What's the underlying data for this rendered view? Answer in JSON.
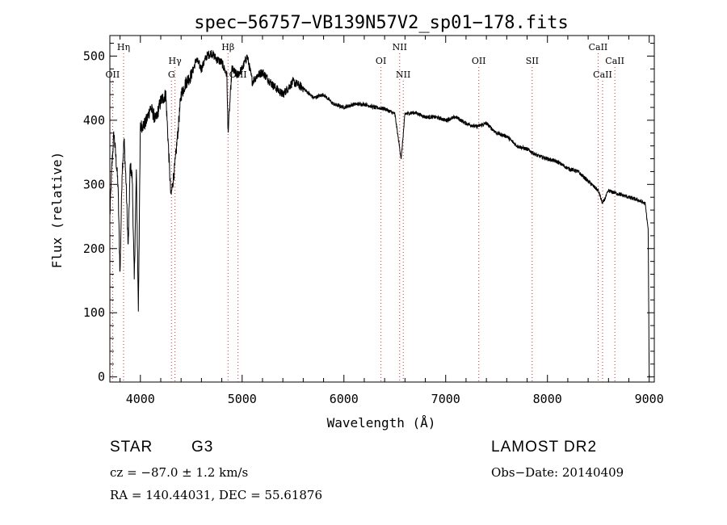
{
  "chart_data": {
    "type": "line",
    "title": "spec−56757−VB139N57V2_sp01−178.fits",
    "xlabel": "Wavelength (Å)",
    "ylabel": "Flux (relative)",
    "xlim": [
      3700,
      9050
    ],
    "ylim": [
      -8,
      532
    ],
    "xticks": [
      4000,
      5000,
      6000,
      7000,
      8000,
      9000
    ],
    "yticks": [
      0,
      100,
      200,
      300,
      400,
      500
    ],
    "grid": false,
    "line_color": "#000000",
    "marker_line_color": "#cc3333",
    "spectrum_anchors": {
      "x": [
        3700,
        3720,
        3740,
        3760,
        3780,
        3800,
        3820,
        3840,
        3860,
        3880,
        3900,
        3920,
        3940,
        3960,
        3980,
        4000,
        4050,
        4100,
        4150,
        4200,
        4250,
        4300,
        4340,
        4400,
        4450,
        4500,
        4550,
        4600,
        4650,
        4700,
        4750,
        4800,
        4850,
        4861,
        4900,
        4950,
        5000,
        5050,
        5100,
        5150,
        5200,
        5300,
        5400,
        5500,
        5600,
        5700,
        5800,
        5900,
        6000,
        6100,
        6200,
        6300,
        6400,
        6500,
        6563,
        6600,
        6700,
        6800,
        6900,
        7000,
        7100,
        7200,
        7300,
        7400,
        7500,
        7600,
        7700,
        7800,
        7900,
        8000,
        8100,
        8200,
        8300,
        8400,
        8500,
        8542,
        8600,
        8700,
        8800,
        8900,
        8960,
        8990,
        9000
      ],
      "y": [
        250,
        330,
        380,
        340,
        300,
        160,
        320,
        370,
        300,
        200,
        330,
        310,
        150,
        320,
        105,
        390,
        395,
        420,
        400,
        430,
        440,
        280,
        330,
        440,
        460,
        470,
        495,
        480,
        500,
        505,
        495,
        490,
        470,
        380,
        480,
        470,
        480,
        500,
        460,
        470,
        475,
        455,
        440,
        460,
        450,
        435,
        440,
        425,
        420,
        425,
        425,
        420,
        418,
        410,
        340,
        410,
        412,
        405,
        405,
        400,
        405,
        395,
        390,
        395,
        380,
        375,
        360,
        355,
        345,
        340,
        335,
        325,
        320,
        305,
        290,
        270,
        290,
        285,
        280,
        275,
        270,
        230,
        0
      ]
    },
    "lines": [
      {
        "label": "Hη",
        "wavelength": 3835,
        "label_row": 1
      },
      {
        "label": "OII",
        "wavelength": 3727,
        "label_row": 3
      },
      {
        "label": "Hγ",
        "wavelength": 4340,
        "label_row": 2
      },
      {
        "label": "G",
        "wavelength": 4305,
        "label_row": 3
      },
      {
        "label": "Hβ",
        "wavelength": 4861,
        "label_row": 1
      },
      {
        "label": "OIII",
        "wavelength": 4959,
        "label_row": 3
      },
      {
        "label": "OI",
        "wavelength": 6364,
        "label_row": 2
      },
      {
        "label": "NII",
        "wavelength": 6548,
        "label_row": 1
      },
      {
        "label": "NII",
        "wavelength": 6583,
        "label_row": 3
      },
      {
        "label": "OII",
        "wavelength": 7325,
        "label_row": 2
      },
      {
        "label": "SII",
        "wavelength": 7850,
        "label_row": 2
      },
      {
        "label": "CaII",
        "wavelength": 8498,
        "label_row": 1
      },
      {
        "label": "CaII",
        "wavelength": 8662,
        "label_row": 2
      },
      {
        "label": "CaII",
        "wavelength": 8542,
        "label_row": 3
      }
    ]
  },
  "info": {
    "object_class": "STAR",
    "subclass": "G3",
    "survey": "LAMOST DR2",
    "cz": "cz = −87.0 ± 1.2 km/s",
    "obs_date": "Obs−Date: 20140409",
    "coords": "RA = 140.44031, DEC =  55.61876"
  }
}
